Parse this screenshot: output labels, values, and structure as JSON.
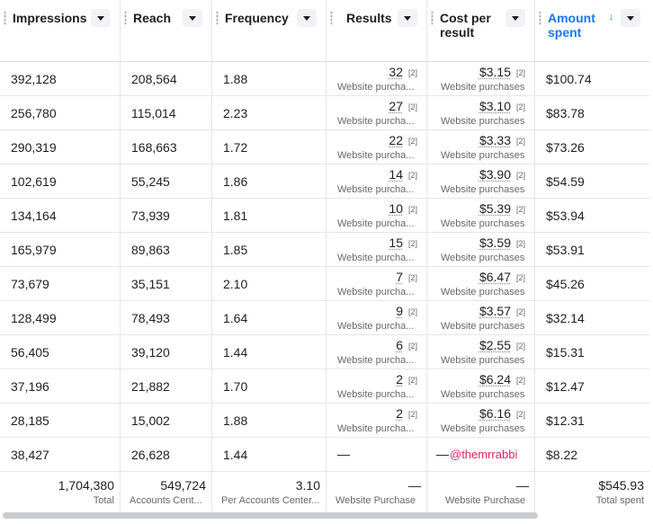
{
  "columns": [
    {
      "label": "Impressions"
    },
    {
      "label": "Reach"
    },
    {
      "label": "Frequency"
    },
    {
      "label": "Results"
    },
    {
      "label": "Cost per result"
    },
    {
      "label": "Amount spent",
      "sort_icon": "↓"
    }
  ],
  "rows": [
    {
      "impressions": "392,128",
      "reach": "208,564",
      "frequency": "1.88",
      "results": "32",
      "results_sup": "[2]",
      "results_sub": "Website purcha...",
      "cost": "$3.15",
      "cost_sup": "[2]",
      "cost_sub": "Website purchases",
      "amount": "$100.74"
    },
    {
      "impressions": "256,780",
      "reach": "115,014",
      "frequency": "2.23",
      "results": "27",
      "results_sup": "[2]",
      "results_sub": "Website purcha...",
      "cost": "$3.10",
      "cost_sup": "[2]",
      "cost_sub": "Website purchases",
      "amount": "$83.78"
    },
    {
      "impressions": "290,319",
      "reach": "168,663",
      "frequency": "1.72",
      "results": "22",
      "results_sup": "[2]",
      "results_sub": "Website purcha...",
      "cost": "$3.33",
      "cost_sup": "[2]",
      "cost_sub": "Website purchases",
      "amount": "$73.26"
    },
    {
      "impressions": "102,619",
      "reach": "55,245",
      "frequency": "1.86",
      "results": "14",
      "results_sup": "[2]",
      "results_sub": "Website purcha...",
      "cost": "$3.90",
      "cost_sup": "[2]",
      "cost_sub": "Website purchases",
      "amount": "$54.59"
    },
    {
      "impressions": "134,164",
      "reach": "73,939",
      "frequency": "1.81",
      "results": "10",
      "results_sup": "[2]",
      "results_sub": "Website purcha...",
      "cost": "$5.39",
      "cost_sup": "[2]",
      "cost_sub": "Website purchases",
      "amount": "$53.94"
    },
    {
      "impressions": "165,979",
      "reach": "89,863",
      "frequency": "1.85",
      "results": "15",
      "results_sup": "[2]",
      "results_sub": "Website purcha...",
      "cost": "$3.59",
      "cost_sup": "[2]",
      "cost_sub": "Website purchases",
      "amount": "$53.91"
    },
    {
      "impressions": "73,679",
      "reach": "35,151",
      "frequency": "2.10",
      "results": "7",
      "results_sup": "[2]",
      "results_sub": "Website purcha...",
      "cost": "$6.47",
      "cost_sup": "[2]",
      "cost_sub": "Website purchases",
      "amount": "$45.26"
    },
    {
      "impressions": "128,499",
      "reach": "78,493",
      "frequency": "1.64",
      "results": "9",
      "results_sup": "[2]",
      "results_sub": "Website purcha...",
      "cost": "$3.57",
      "cost_sup": "[2]",
      "cost_sub": "Website purchases",
      "amount": "$32.14"
    },
    {
      "impressions": "56,405",
      "reach": "39,120",
      "frequency": "1.44",
      "results": "6",
      "results_sup": "[2]",
      "results_sub": "Website purcha...",
      "cost": "$2.55",
      "cost_sup": "[2]",
      "cost_sub": "Website purchases",
      "amount": "$15.31"
    },
    {
      "impressions": "37,196",
      "reach": "21,882",
      "frequency": "1.70",
      "results": "2",
      "results_sup": "[2]",
      "results_sub": "Website purcha...",
      "cost": "$6.24",
      "cost_sup": "[2]",
      "cost_sub": "Website purchases",
      "amount": "$12.47"
    },
    {
      "impressions": "28,185",
      "reach": "15,002",
      "frequency": "1.88",
      "results": "2",
      "results_sup": "[2]",
      "results_sub": "Website purcha...",
      "cost": "$6.16",
      "cost_sup": "[2]",
      "cost_sub": "Website purchases",
      "amount": "$12.31"
    }
  ],
  "last_row": {
    "impressions": "38,427",
    "reach": "26,628",
    "frequency": "1.44",
    "results": "—",
    "cost": "—",
    "watermark": "@themrrabbi",
    "amount": "$8.22"
  },
  "totals": {
    "impressions": {
      "value": "1,704,380",
      "label": "Total"
    },
    "reach": {
      "value": "549,724",
      "label": "Accounts Cent..."
    },
    "frequency": {
      "value": "3.10",
      "label": "Per Accounts Center..."
    },
    "results": {
      "value": "—",
      "label": "Website Purchase"
    },
    "cost": {
      "value": "—",
      "label": "Website Purchase"
    },
    "amount": {
      "value": "$545.93",
      "label": "Total spent"
    }
  },
  "colors": {
    "accent": "#1877f2",
    "watermark": "#e0245e"
  }
}
